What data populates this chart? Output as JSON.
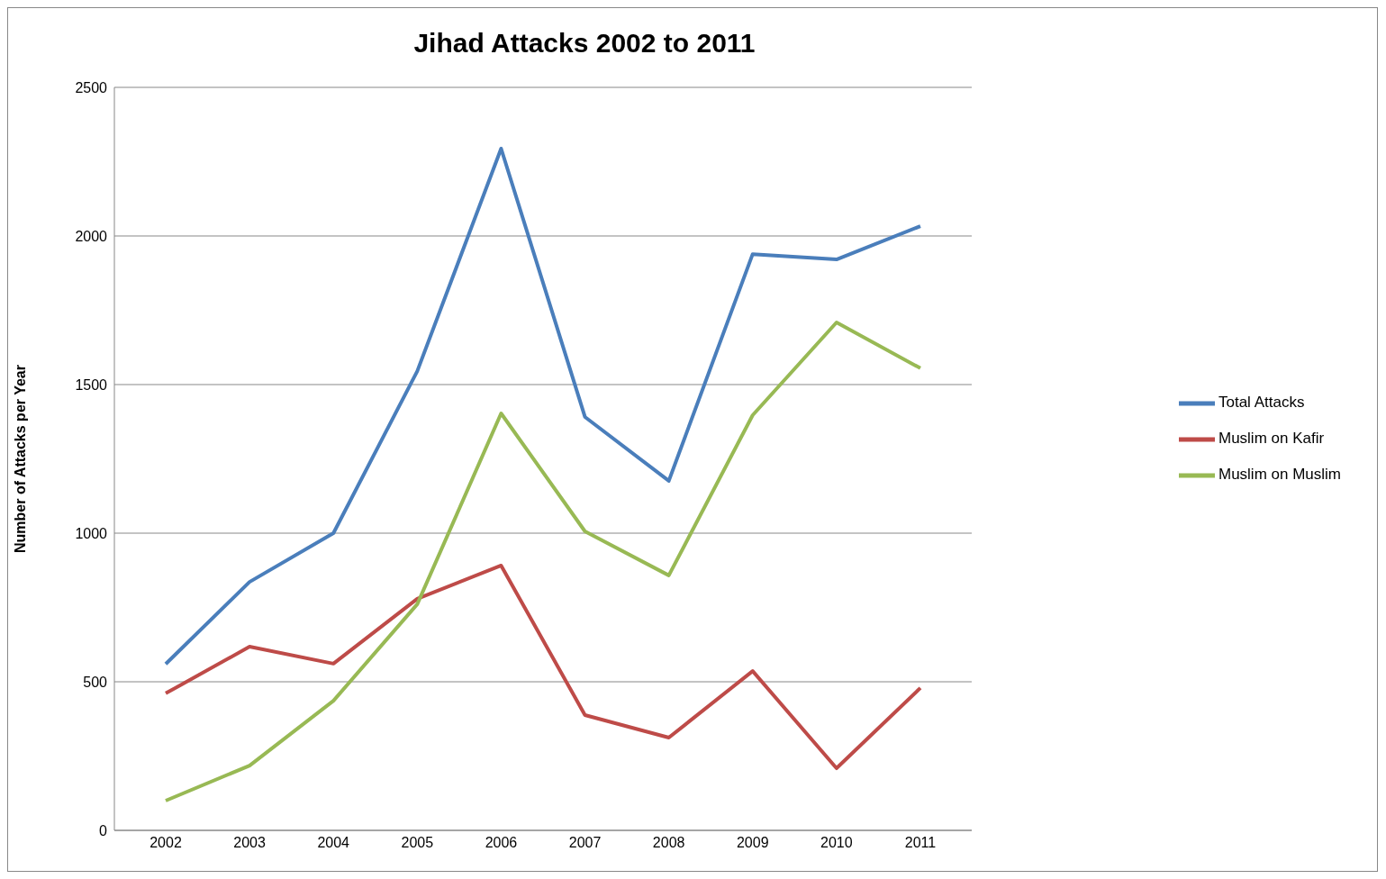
{
  "chart_data": {
    "type": "line",
    "title": "Jihad Attacks 2002 to 2011",
    "ylabel": "Number of Attacks per Year",
    "categories": [
      "2002",
      "2003",
      "2004",
      "2005",
      "2006",
      "2007",
      "2008",
      "2009",
      "2010",
      "2011"
    ],
    "series": [
      {
        "name": "Total Attacks",
        "color": "#4a7ebb",
        "values": [
          560,
          836,
          1000,
          1545,
          2294,
          1391,
          1176,
          1939,
          1921,
          2033
        ]
      },
      {
        "name": "Muslim on Kafir",
        "color": "#be4b48",
        "values": [
          461,
          618,
          561,
          779,
          891,
          388,
          312,
          536,
          209,
          479
        ]
      },
      {
        "name": "Muslim on Muslim",
        "color": "#98b954",
        "values": [
          100,
          218,
          436,
          761,
          1403,
          1006,
          858,
          1397,
          1709,
          1555
        ]
      }
    ],
    "ylim": [
      0,
      2500
    ],
    "yticks": [
      0,
      500,
      1000,
      1500,
      2000,
      2500
    ],
    "grid": "y",
    "legend": "right",
    "marker": "none",
    "line_style": "solid"
  }
}
